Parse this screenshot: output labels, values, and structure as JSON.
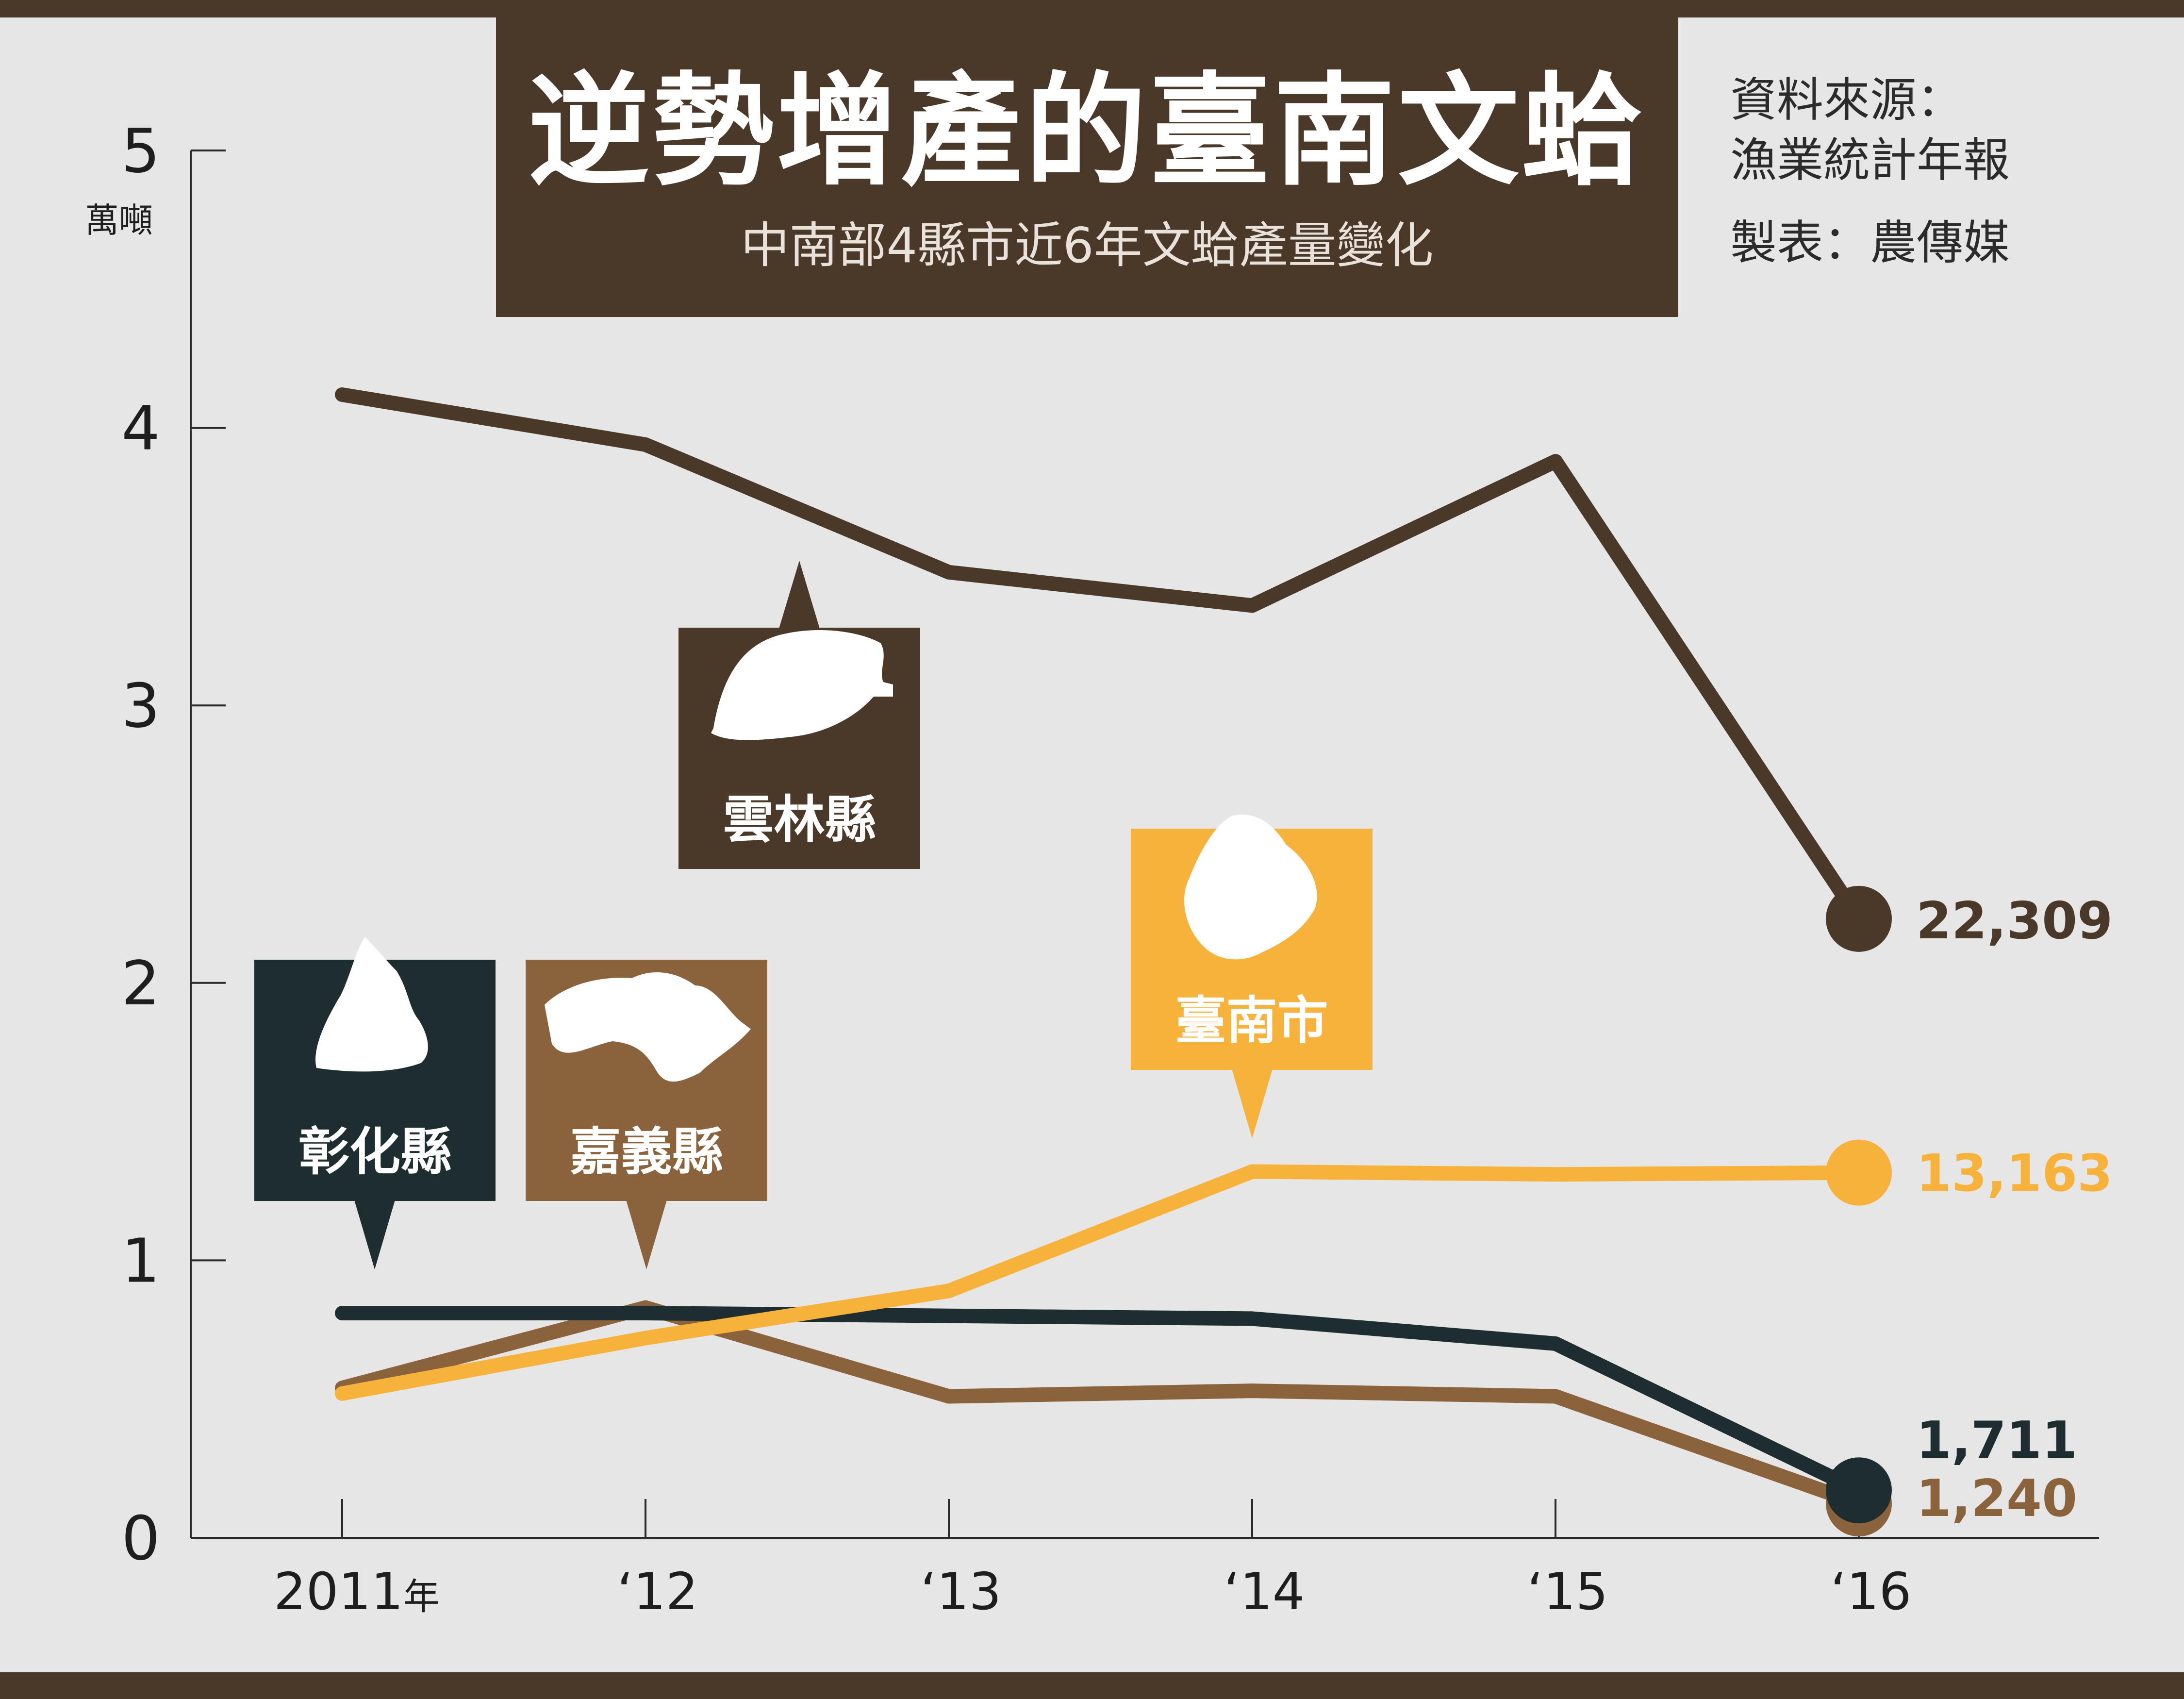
{
  "header": {
    "title": "逆勢增產的臺南文蛤",
    "subtitle": "中南部4縣市近6年文蛤產量變化",
    "source_label": "資料來源：",
    "source_value": "漁業統計年報",
    "credit": "製表：農傳媒"
  },
  "colors": {
    "yunlin": "#4a3829",
    "changhua": "#1e2d2f",
    "chiayi": "#8a623c",
    "tainan": "#f7b23b",
    "axis": "#2b2b2b",
    "background": "#e6e6e6"
  },
  "icons": {
    "yunlin": "yunlin-map-icon",
    "changhua": "changhua-map-icon",
    "chiayi": "chiayi-map-icon",
    "tainan": "tainan-map-icon"
  },
  "chart_data": {
    "type": "line",
    "title": "逆勢增產的臺南文蛤",
    "subtitle": "中南部4縣市近6年文蛤產量變化",
    "ylabel": "萬噸",
    "ylim": [
      0,
      5
    ],
    "yticks": [
      "0",
      "1",
      "2",
      "3",
      "4",
      "5"
    ],
    "categories": [
      "2011年",
      "‘12",
      "‘13",
      "‘14",
      "‘15",
      "‘16"
    ],
    "x_first_num": "2011",
    "x_first_suffix": "年",
    "grid": false,
    "legend": "labels-on-chart",
    "series": [
      {
        "key": "yunlin",
        "name": "雲林縣",
        "values": [
          4.12,
          3.94,
          3.48,
          3.36,
          3.88,
          2.2309
        ],
        "end_label": "22,309"
      },
      {
        "key": "changhua",
        "name": "彰化縣",
        "values": [
          0.81,
          0.81,
          0.8,
          0.79,
          0.7,
          0.1711
        ],
        "end_label": "1,711"
      },
      {
        "key": "chiayi",
        "name": "嘉義縣",
        "values": [
          0.54,
          0.83,
          0.51,
          0.53,
          0.51,
          0.124
        ],
        "end_label": "1,240"
      },
      {
        "key": "tainan",
        "name": "臺南市",
        "values": [
          0.52,
          0.72,
          0.89,
          1.32,
          1.31,
          1.3163
        ],
        "end_label": "13,163"
      }
    ]
  }
}
